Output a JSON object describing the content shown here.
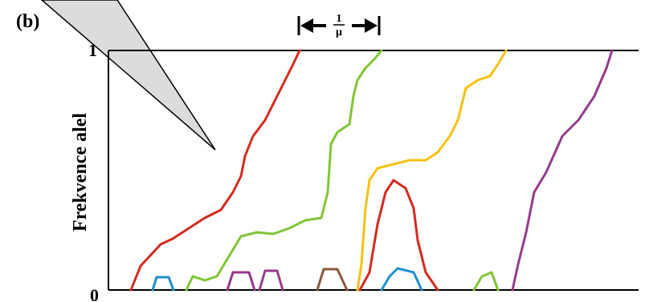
{
  "panel_label": "(b)",
  "axis": {
    "top_label": "1",
    "bottom_label": "0",
    "title": "Frekvence alel"
  },
  "interval": {
    "numerator": "1",
    "denominator": "μ"
  }
}
